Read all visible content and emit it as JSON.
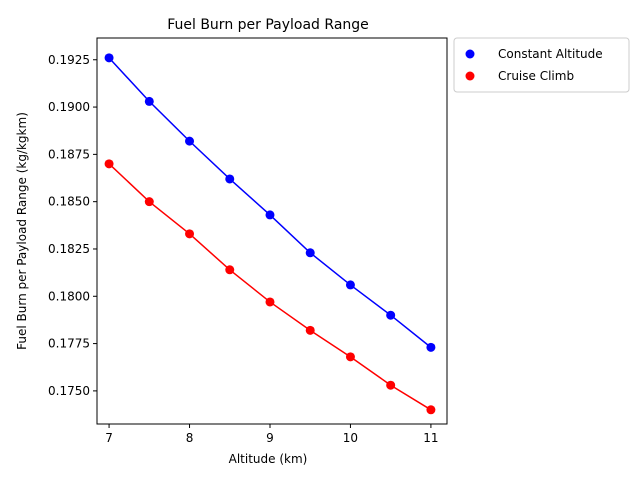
{
  "chart_data": {
    "type": "line",
    "title": "Fuel Burn per Payload Range",
    "xlabel": "Altitude (km)",
    "ylabel": "Fuel Burn per Payload Range (kg/kgkm)",
    "xlim": [
      6.85,
      11.2
    ],
    "ylim": [
      0.17325,
      0.19365
    ],
    "x_ticks": [
      "7",
      "8",
      "9",
      "10",
      "11"
    ],
    "y_ticks": [
      "0.1750",
      "0.1775",
      "0.1800",
      "0.1825",
      "0.1850",
      "0.1875",
      "0.1900",
      "0.1925"
    ],
    "grid": false,
    "legend_placement": "outside-upper-right",
    "series": [
      {
        "name": "Constant Altitude",
        "color": "#0000ff",
        "marker": "circle",
        "x": [
          7.0,
          7.5,
          8.0,
          8.5,
          9.0,
          9.5,
          10.0,
          10.5,
          11.0
        ],
        "y": [
          0.1926,
          0.1903,
          0.1882,
          0.1862,
          0.1843,
          0.1823,
          0.1806,
          0.179,
          0.1773
        ]
      },
      {
        "name": "Cruise Climb",
        "color": "#ff0000",
        "marker": "circle",
        "x": [
          7.0,
          7.5,
          8.0,
          8.5,
          9.0,
          9.5,
          10.0,
          10.5,
          11.0
        ],
        "y": [
          0.187,
          0.185,
          0.1833,
          0.1814,
          0.1797,
          0.1782,
          0.1768,
          0.1753,
          0.174
        ]
      }
    ]
  }
}
